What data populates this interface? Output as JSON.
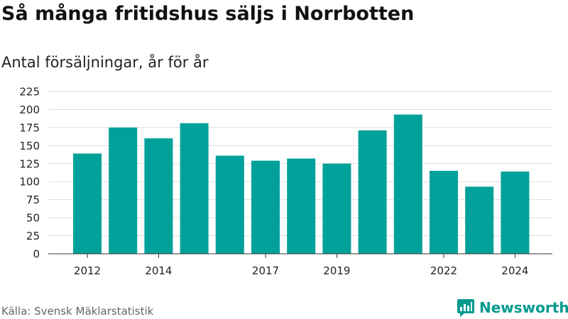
{
  "header": {
    "title": "Så många fritidshus säljs i Norrbotten",
    "subtitle": "Antal försäljningar, år för år"
  },
  "footer": {
    "source": "Källa: Svensk Mäklarstatistik",
    "brand": "Newsworthy"
  },
  "colors": {
    "bar": "#00a19a",
    "brand": "#009a8e",
    "grid": "#dddddd"
  },
  "icons": {
    "logo": "bar-chart-speech-bubble-icon"
  },
  "chart_data": {
    "type": "bar",
    "title": "Så många fritidshus säljs i Norrbotten",
    "subtitle": "Antal försäljningar, år för år",
    "xlabel": "",
    "ylabel": "",
    "categories": [
      2012,
      2013,
      2014,
      2015,
      2016,
      2017,
      2018,
      2019,
      2020,
      2021,
      2022,
      2023,
      2024
    ],
    "values": [
      139,
      175,
      160,
      181,
      136,
      129,
      132,
      125,
      171,
      193,
      115,
      93,
      114
    ],
    "x_tick_labels": [
      "2012",
      "2014",
      "2017",
      "2019",
      "2022",
      "2024"
    ],
    "y_ticks": [
      0,
      25,
      50,
      75,
      100,
      125,
      150,
      175,
      200,
      225
    ],
    "ylim": [
      0,
      225
    ],
    "grid": true,
    "legend": "none"
  }
}
